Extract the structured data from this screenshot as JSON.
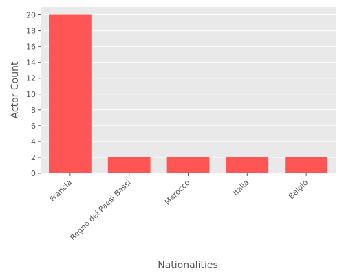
{
  "chart_data": {
    "type": "bar",
    "title": "",
    "xlabel": "Nationalities",
    "ylabel": "Actor Count",
    "categories": [
      "Francia",
      "Regno dei Paesi Bassi",
      "Marocco",
      "Italia",
      "Belgio"
    ],
    "values": [
      20,
      2,
      2,
      2,
      2
    ],
    "ylim": [
      0,
      21
    ],
    "yticks": [
      0,
      2,
      4,
      6,
      8,
      10,
      12,
      14,
      16,
      18,
      20
    ],
    "grid": true,
    "legend": "none",
    "colors": {
      "bar": "#ff5555",
      "background": "#e9e9e9",
      "grid": "#ffffff",
      "text": "#555555"
    }
  }
}
